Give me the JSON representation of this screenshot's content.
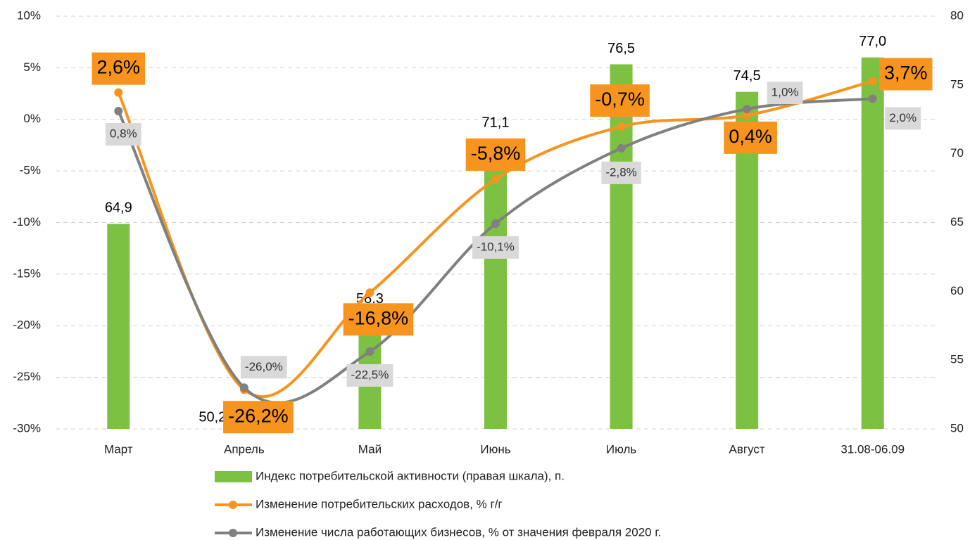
{
  "chart_data": {
    "type": "bar_line",
    "categories": [
      "Март",
      "Апрель",
      "Май",
      "Июнь",
      "Июль",
      "Август",
      "31.08-06.09"
    ],
    "ylim": [
      -30,
      10
    ],
    "yticks": [
      {
        "value": -30,
        "label": "-30%"
      },
      {
        "value": -25,
        "label": "-25%"
      },
      {
        "value": -20,
        "label": "-20%"
      },
      {
        "value": -15,
        "label": "-15%"
      },
      {
        "value": -10,
        "label": "-10%"
      },
      {
        "value": -5,
        "label": "-5%"
      },
      {
        "value": 0,
        "label": "0%"
      },
      {
        "value": 5,
        "label": "5%"
      },
      {
        "value": 10,
        "label": "10%"
      }
    ],
    "y2lim": [
      50,
      80
    ],
    "y2ticks": [
      50,
      55,
      60,
      65,
      70,
      75,
      80
    ],
    "grid": true,
    "legend": "bottom",
    "series": [
      {
        "name": "Индекс потребительской активности (правая шкала), п.",
        "type": "bar",
        "axis": "y2",
        "color": "#7dc142",
        "values": [
          64.9,
          50.2,
          58.3,
          71.1,
          76.5,
          74.5,
          77.0
        ],
        "value_labels": [
          "64,9",
          "50,2",
          "58.3",
          "71,1",
          "76,5",
          "74,5",
          "77,0"
        ]
      },
      {
        "name": "Изменение потребительских расходов, % г/г",
        "type": "line",
        "color": "#f7941d",
        "values": [
          2.6,
          -26.2,
          -16.8,
          -5.8,
          -0.7,
          0.4,
          3.7
        ],
        "value_labels": [
          "2,6%",
          "-26,2%",
          "-16,8%",
          "-5,8%",
          "-0,7%",
          "0,4%",
          "3,7%"
        ]
      },
      {
        "name": "Изменение числа работающих бизнесов, % от значения февраля 2020 г.",
        "type": "line",
        "color": "#808080",
        "values": [
          0.8,
          -26.0,
          -22.5,
          -10.1,
          -2.8,
          1.0,
          2.0
        ],
        "value_labels": [
          "0,8%",
          "-26,0%",
          "-22,5%",
          "-10,1%",
          "-2,8%",
          "1,0%",
          "2,0%"
        ]
      }
    ]
  }
}
